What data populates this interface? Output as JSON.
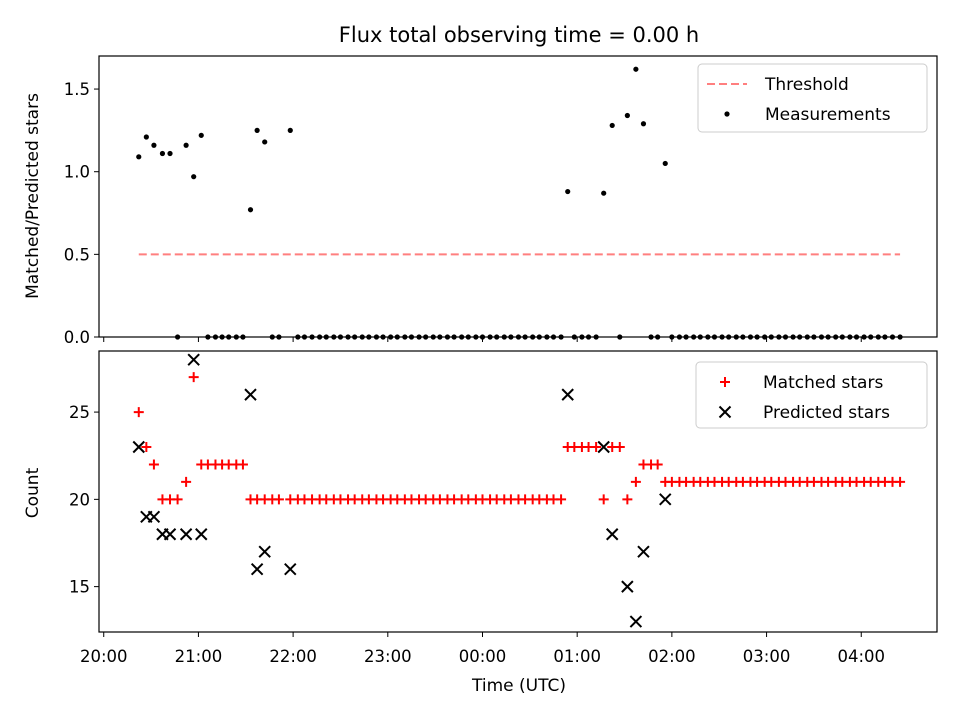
{
  "chart_data": {
    "title": "Flux total observing time = 0.00 h",
    "xlabel": "Time (UTC)",
    "x_ticks": [
      {
        "h": 20,
        "label": "20:00"
      },
      {
        "h": 21,
        "label": "21:00"
      },
      {
        "h": 22,
        "label": "22:00"
      },
      {
        "h": 23,
        "label": "23:00"
      },
      {
        "h": 24,
        "label": "00:00"
      },
      {
        "h": 25,
        "label": "01:00"
      },
      {
        "h": 26,
        "label": "02:00"
      },
      {
        "h": 27,
        "label": "03:00"
      },
      {
        "h": 28,
        "label": "04:00"
      }
    ],
    "xlim": [
      19.95,
      28.8
    ],
    "panels": [
      {
        "id": "ratio",
        "type": "scatter",
        "ylabel": "Matched/Predicted stars",
        "ylim": [
          0,
          1.7
        ],
        "y_ticks": [
          0,
          0.5,
          1.0,
          1.5
        ],
        "y_tick_labels": [
          "0.0",
          "0.5",
          "1.0",
          "1.5"
        ],
        "legend_position": "top-right",
        "series": [
          {
            "name": "Threshold",
            "kind": "dashed-line",
            "color": "#ff7f7f",
            "points": [
              [
                20.37,
                0.5
              ],
              [
                28.41,
                0.5
              ]
            ]
          },
          {
            "name": "Measurements",
            "kind": "dot",
            "color": "#000000",
            "points": [
              [
                20.37,
                1.09
              ],
              [
                20.45,
                1.21
              ],
              [
                20.53,
                1.16
              ],
              [
                20.62,
                1.11
              ],
              [
                20.7,
                1.11
              ],
              [
                20.78,
                0
              ],
              [
                20.87,
                1.16
              ],
              [
                20.95,
                0.97
              ],
              [
                21.03,
                1.22
              ],
              [
                21.1,
                0
              ],
              [
                21.18,
                0
              ],
              [
                21.25,
                0
              ],
              [
                21.32,
                0
              ],
              [
                21.4,
                0
              ],
              [
                21.47,
                0
              ],
              [
                21.55,
                0.77
              ],
              [
                21.62,
                1.25
              ],
              [
                21.7,
                1.18
              ],
              [
                21.78,
                0
              ],
              [
                21.85,
                0
              ],
              [
                21.97,
                1.25
              ],
              [
                22.05,
                0
              ],
              [
                22.12,
                0
              ],
              [
                22.2,
                0
              ],
              [
                22.28,
                0
              ],
              [
                22.35,
                0
              ],
              [
                22.43,
                0
              ],
              [
                22.5,
                0
              ],
              [
                22.58,
                0
              ],
              [
                22.65,
                0
              ],
              [
                22.73,
                0
              ],
              [
                22.8,
                0
              ],
              [
                22.88,
                0
              ],
              [
                22.95,
                0
              ],
              [
                23.03,
                0
              ],
              [
                23.1,
                0
              ],
              [
                23.18,
                0
              ],
              [
                23.25,
                0
              ],
              [
                23.33,
                0
              ],
              [
                23.4,
                0
              ],
              [
                23.48,
                0
              ],
              [
                23.55,
                0
              ],
              [
                23.63,
                0
              ],
              [
                23.7,
                0
              ],
              [
                23.78,
                0
              ],
              [
                23.85,
                0
              ],
              [
                23.93,
                0
              ],
              [
                24.0,
                0
              ],
              [
                24.08,
                0
              ],
              [
                24.15,
                0
              ],
              [
                24.23,
                0
              ],
              [
                24.3,
                0
              ],
              [
                24.38,
                0
              ],
              [
                24.45,
                0
              ],
              [
                24.53,
                0
              ],
              [
                24.6,
                0
              ],
              [
                24.68,
                0
              ],
              [
                24.75,
                0
              ],
              [
                24.83,
                0
              ],
              [
                24.9,
                0.88
              ],
              [
                24.97,
                0
              ],
              [
                25.05,
                0
              ],
              [
                25.12,
                0
              ],
              [
                25.2,
                0
              ],
              [
                25.28,
                0.87
              ],
              [
                25.37,
                1.28
              ],
              [
                25.45,
                0
              ],
              [
                25.53,
                1.34
              ],
              [
                25.62,
                1.62
              ],
              [
                25.7,
                1.29
              ],
              [
                25.78,
                0
              ],
              [
                25.85,
                0
              ],
              [
                25.93,
                1.05
              ],
              [
                26.0,
                0
              ],
              [
                26.08,
                0
              ],
              [
                26.15,
                0
              ],
              [
                26.23,
                0
              ],
              [
                26.3,
                0
              ],
              [
                26.38,
                0
              ],
              [
                26.45,
                0
              ],
              [
                26.53,
                0
              ],
              [
                26.6,
                0
              ],
              [
                26.68,
                0
              ],
              [
                26.75,
                0
              ],
              [
                26.83,
                0
              ],
              [
                26.9,
                0
              ],
              [
                26.98,
                0
              ],
              [
                27.05,
                0
              ],
              [
                27.13,
                0
              ],
              [
                27.2,
                0
              ],
              [
                27.28,
                0
              ],
              [
                27.35,
                0
              ],
              [
                27.43,
                0
              ],
              [
                27.5,
                0
              ],
              [
                27.58,
                0
              ],
              [
                27.65,
                0
              ],
              [
                27.73,
                0
              ],
              [
                27.8,
                0
              ],
              [
                27.88,
                0
              ],
              [
                27.95,
                0
              ],
              [
                28.03,
                0
              ],
              [
                28.1,
                0
              ],
              [
                28.18,
                0
              ],
              [
                28.25,
                0
              ],
              [
                28.33,
                0
              ],
              [
                28.41,
                0
              ]
            ]
          }
        ]
      },
      {
        "id": "count",
        "type": "scatter",
        "ylabel": "Count",
        "ylim": [
          12.4,
          28.5
        ],
        "y_ticks": [
          15,
          20,
          25
        ],
        "y_tick_labels": [
          "15",
          "20",
          "25"
        ],
        "legend_position": "top-right",
        "series": [
          {
            "name": "Matched stars",
            "kind": "plus",
            "color": "#ff0000",
            "points": [
              [
                20.37,
                25
              ],
              [
                20.45,
                23
              ],
              [
                20.53,
                22
              ],
              [
                20.62,
                20
              ],
              [
                20.7,
                20
              ],
              [
                20.78,
                20
              ],
              [
                20.87,
                21
              ],
              [
                20.95,
                27
              ],
              [
                21.03,
                22
              ],
              [
                21.1,
                22
              ],
              [
                21.18,
                22
              ],
              [
                21.25,
                22
              ],
              [
                21.32,
                22
              ],
              [
                21.4,
                22
              ],
              [
                21.47,
                22
              ],
              [
                21.55,
                20
              ],
              [
                21.62,
                20
              ],
              [
                21.7,
                20
              ],
              [
                21.78,
                20
              ],
              [
                21.85,
                20
              ],
              [
                21.97,
                20
              ],
              [
                22.05,
                20
              ],
              [
                22.12,
                20
              ],
              [
                22.2,
                20
              ],
              [
                22.28,
                20
              ],
              [
                22.35,
                20
              ],
              [
                22.43,
                20
              ],
              [
                22.5,
                20
              ],
              [
                22.58,
                20
              ],
              [
                22.65,
                20
              ],
              [
                22.73,
                20
              ],
              [
                22.8,
                20
              ],
              [
                22.88,
                20
              ],
              [
                22.95,
                20
              ],
              [
                23.03,
                20
              ],
              [
                23.1,
                20
              ],
              [
                23.18,
                20
              ],
              [
                23.25,
                20
              ],
              [
                23.33,
                20
              ],
              [
                23.4,
                20
              ],
              [
                23.48,
                20
              ],
              [
                23.55,
                20
              ],
              [
                23.63,
                20
              ],
              [
                23.7,
                20
              ],
              [
                23.78,
                20
              ],
              [
                23.85,
                20
              ],
              [
                23.93,
                20
              ],
              [
                24.0,
                20
              ],
              [
                24.08,
                20
              ],
              [
                24.15,
                20
              ],
              [
                24.23,
                20
              ],
              [
                24.3,
                20
              ],
              [
                24.38,
                20
              ],
              [
                24.45,
                20
              ],
              [
                24.53,
                20
              ],
              [
                24.6,
                20
              ],
              [
                24.68,
                20
              ],
              [
                24.75,
                20
              ],
              [
                24.83,
                20
              ],
              [
                24.9,
                23
              ],
              [
                24.97,
                23
              ],
              [
                25.05,
                23
              ],
              [
                25.12,
                23
              ],
              [
                25.2,
                23
              ],
              [
                25.28,
                20
              ],
              [
                25.37,
                23
              ],
              [
                25.45,
                23
              ],
              [
                25.53,
                20
              ],
              [
                25.62,
                21
              ],
              [
                25.7,
                22
              ],
              [
                25.78,
                22
              ],
              [
                25.85,
                22
              ],
              [
                25.93,
                21
              ],
              [
                26.0,
                21
              ],
              [
                26.08,
                21
              ],
              [
                26.15,
                21
              ],
              [
                26.23,
                21
              ],
              [
                26.3,
                21
              ],
              [
                26.38,
                21
              ],
              [
                26.45,
                21
              ],
              [
                26.53,
                21
              ],
              [
                26.6,
                21
              ],
              [
                26.68,
                21
              ],
              [
                26.75,
                21
              ],
              [
                26.83,
                21
              ],
              [
                26.9,
                21
              ],
              [
                26.98,
                21
              ],
              [
                27.05,
                21
              ],
              [
                27.13,
                21
              ],
              [
                27.2,
                21
              ],
              [
                27.28,
                21
              ],
              [
                27.35,
                21
              ],
              [
                27.43,
                21
              ],
              [
                27.5,
                21
              ],
              [
                27.58,
                21
              ],
              [
                27.65,
                21
              ],
              [
                27.73,
                21
              ],
              [
                27.8,
                21
              ],
              [
                27.88,
                21
              ],
              [
                27.95,
                21
              ],
              [
                28.03,
                21
              ],
              [
                28.1,
                21
              ],
              [
                28.18,
                21
              ],
              [
                28.25,
                21
              ],
              [
                28.33,
                21
              ],
              [
                28.41,
                21
              ]
            ]
          },
          {
            "name": "Predicted stars",
            "kind": "x",
            "color": "#000000",
            "points": [
              [
                20.37,
                23
              ],
              [
                20.45,
                19
              ],
              [
                20.53,
                19
              ],
              [
                20.62,
                18
              ],
              [
                20.7,
                18
              ],
              [
                20.87,
                18
              ],
              [
                20.95,
                28
              ],
              [
                21.03,
                18
              ],
              [
                21.55,
                26
              ],
              [
                21.62,
                16
              ],
              [
                21.7,
                17
              ],
              [
                21.97,
                16
              ],
              [
                24.9,
                26
              ],
              [
                25.28,
                23
              ],
              [
                25.37,
                18
              ],
              [
                25.53,
                15
              ],
              [
                25.62,
                13
              ],
              [
                25.7,
                17
              ],
              [
                25.93,
                20
              ]
            ]
          }
        ]
      }
    ]
  }
}
